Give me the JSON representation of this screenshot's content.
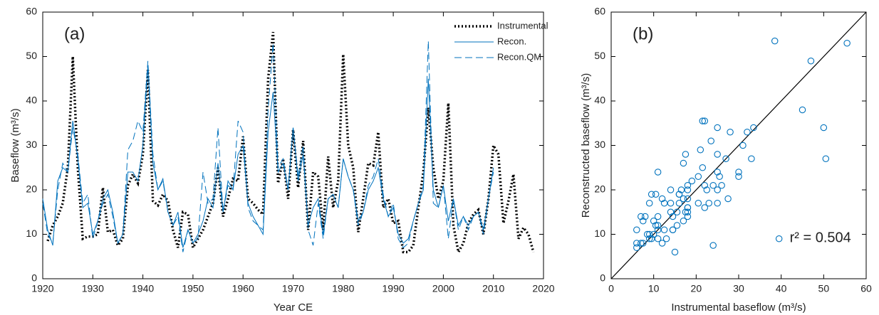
{
  "chart_data": [
    {
      "type": "line",
      "panel_label": "(a)",
      "xlabel": "Year CE",
      "ylabel": "Baseflow (m³/s)",
      "xlim": [
        1920,
        2020
      ],
      "xticks": [
        1920,
        1930,
        1940,
        1950,
        1960,
        1970,
        1980,
        1990,
        2000,
        2010,
        2020
      ],
      "ylim": [
        0,
        60
      ],
      "yticks": [
        0,
        10,
        20,
        30,
        40,
        50,
        60
      ],
      "legend": "upper right",
      "x": [
        1920,
        1921,
        1922,
        1923,
        1924,
        1925,
        1926,
        1927,
        1928,
        1929,
        1930,
        1931,
        1932,
        1933,
        1934,
        1935,
        1936,
        1937,
        1938,
        1939,
        1940,
        1941,
        1942,
        1943,
        1944,
        1945,
        1946,
        1947,
        1948,
        1949,
        1950,
        1951,
        1952,
        1953,
        1954,
        1955,
        1956,
        1957,
        1958,
        1959,
        1960,
        1961,
        1962,
        1963,
        1964,
        1965,
        1966,
        1967,
        1968,
        1969,
        1970,
        1971,
        1972,
        1973,
        1974,
        1975,
        1976,
        1977,
        1978,
        1979,
        1980,
        1981,
        1982,
        1983,
        1984,
        1985,
        1986,
        1987,
        1988,
        1989,
        1990,
        1991,
        1992,
        1993,
        1994,
        1995,
        1996,
        1997,
        1998,
        1999,
        2000,
        2001,
        2002,
        2003,
        2004,
        2005,
        2006,
        2007,
        2008,
        2009,
        2010,
        2011,
        2012,
        2013,
        2014,
        2015,
        2016,
        2017,
        2018
      ],
      "series": [
        {
          "name": "Instrumental",
          "color": "#000000",
          "style": "dotted",
          "values": [
            null,
            8.5,
            12,
            14,
            17,
            25,
            50,
            25,
            9,
            9.5,
            9.5,
            10,
            20.5,
            10.5,
            11,
            7.5,
            9,
            21,
            23.5,
            21.5,
            28,
            47,
            17.5,
            16.5,
            19,
            17.5,
            11,
            7,
            15,
            14.5,
            7,
            9,
            11,
            14,
            17,
            25,
            14,
            18,
            22.5,
            22,
            32,
            18,
            17,
            15.5,
            14.5,
            45,
            55.5,
            21.5,
            27,
            18,
            33.5,
            20.5,
            31,
            11,
            24,
            23,
            11,
            27.5,
            16,
            22,
            50.5,
            30,
            25,
            10.5,
            18,
            26,
            25.5,
            33,
            16,
            18,
            12.5,
            13,
            6,
            6,
            7.5,
            16,
            24,
            38.5,
            25,
            18,
            22,
            39.5,
            12,
            6,
            8,
            12.5,
            14.5,
            15.5,
            10,
            18,
            30,
            28,
            12.5,
            17.5,
            23.5,
            9,
            11.5,
            10,
            6
          ]
        },
        {
          "name": "Recon.",
          "color": "#0072BD",
          "style": "solid",
          "values": [
            18,
            11,
            7.5,
            22,
            25,
            24,
            35.5,
            27,
            16,
            17,
            10,
            13,
            18,
            20,
            15,
            8,
            10,
            24,
            24,
            22,
            30,
            48,
            26,
            20,
            22.5,
            15,
            12,
            15,
            7,
            11,
            8,
            10,
            13,
            18,
            16,
            26,
            15,
            22,
            20,
            28,
            30,
            17,
            14,
            12,
            10,
            33,
            42,
            24,
            26,
            20,
            34,
            22,
            28,
            12,
            16,
            18,
            10,
            18,
            19,
            16,
            27,
            23,
            20,
            13,
            15,
            20,
            22,
            25,
            18,
            14,
            16,
            10,
            8,
            9,
            13,
            17,
            20,
            45,
            20,
            16,
            21,
            13,
            18,
            12,
            14,
            12,
            14,
            15,
            11,
            18,
            25,
            null,
            null,
            null,
            null,
            null,
            null,
            null,
            null
          ]
        },
        {
          "name": "Recon.QM",
          "color": "#0072BD",
          "style": "dashed",
          "values": [
            17,
            10,
            8,
            20,
            26,
            24,
            34,
            28,
            17,
            19,
            9,
            13,
            17,
            19,
            14,
            8,
            10,
            29,
            31,
            35.5,
            33,
            49,
            28,
            20,
            22,
            15,
            12,
            14,
            6,
            11,
            8,
            9,
            24,
            17,
            18,
            34,
            15,
            21,
            20,
            35.5,
            33,
            16,
            13,
            12,
            11,
            38,
            53,
            25,
            27,
            20,
            34,
            23,
            30,
            11,
            7.5,
            17,
            9,
            18,
            19,
            16,
            27,
            23,
            20,
            12,
            15,
            21,
            23,
            27,
            19,
            14,
            17,
            9,
            7,
            8,
            13,
            17,
            21,
            53.5,
            17,
            16,
            21,
            9,
            18,
            11,
            14,
            11,
            14,
            15,
            10,
            18,
            24,
            null,
            null,
            null,
            null,
            null,
            null,
            null,
            null
          ]
        }
      ]
    },
    {
      "type": "scatter",
      "panel_label": "(b)",
      "xlabel": "Instrumental baseflow (m³/s)",
      "ylabel": "Reconstructed baseflow (m³/s)",
      "annotation": "r² = 0.504",
      "color": "#0072BD",
      "xlim": [
        0,
        60
      ],
      "xticks": [
        0,
        10,
        20,
        30,
        40,
        50,
        60
      ],
      "ylim": [
        0,
        60
      ],
      "yticks": [
        0,
        10,
        20,
        30,
        40,
        50,
        60
      ],
      "x": [
        8.5,
        12,
        14,
        17,
        25,
        50,
        25,
        9,
        9.5,
        9.5,
        10,
        20.5,
        10.5,
        11,
        7.5,
        9,
        21,
        23.5,
        21.5,
        28,
        47,
        17.5,
        16.5,
        19,
        17.5,
        11,
        7,
        15,
        14.5,
        7,
        9,
        11,
        14,
        17,
        25,
        14,
        18,
        22.5,
        22,
        32,
        18,
        17,
        15.5,
        14.5,
        45,
        55.5,
        21.5,
        27,
        18,
        33.5,
        20.5,
        31,
        11,
        24,
        23,
        11,
        27.5,
        16,
        22,
        50.5,
        30,
        25,
        10.5,
        18,
        26,
        25.5,
        33,
        16,
        18,
        12.5,
        13,
        6,
        6,
        7.5,
        16,
        24,
        38.5,
        25,
        18,
        22,
        39.5,
        12,
        6,
        8,
        12.5,
        14.5,
        15.5,
        10,
        18,
        30
      ],
      "y": [
        10,
        8,
        20,
        26,
        24,
        34,
        28,
        17,
        19,
        9,
        13,
        17,
        19,
        14,
        8,
        10,
        29,
        31,
        35.5,
        33,
        49,
        28,
        20,
        22,
        15,
        12,
        14,
        6,
        11,
        8,
        9,
        24,
        17,
        18,
        34,
        15,
        21,
        20,
        35.5,
        33,
        16,
        13,
        12,
        11,
        38,
        53,
        25,
        27,
        20,
        34,
        23,
        30,
        11,
        7.5,
        17,
        9,
        18,
        19,
        16,
        27,
        23,
        20,
        12,
        15,
        21,
        23,
        27,
        19,
        14,
        17,
        9,
        7,
        8,
        13,
        17,
        21,
        53.5,
        17,
        16,
        21,
        9,
        18,
        11,
        14,
        11,
        14,
        15,
        10,
        18,
        24
      ]
    }
  ]
}
